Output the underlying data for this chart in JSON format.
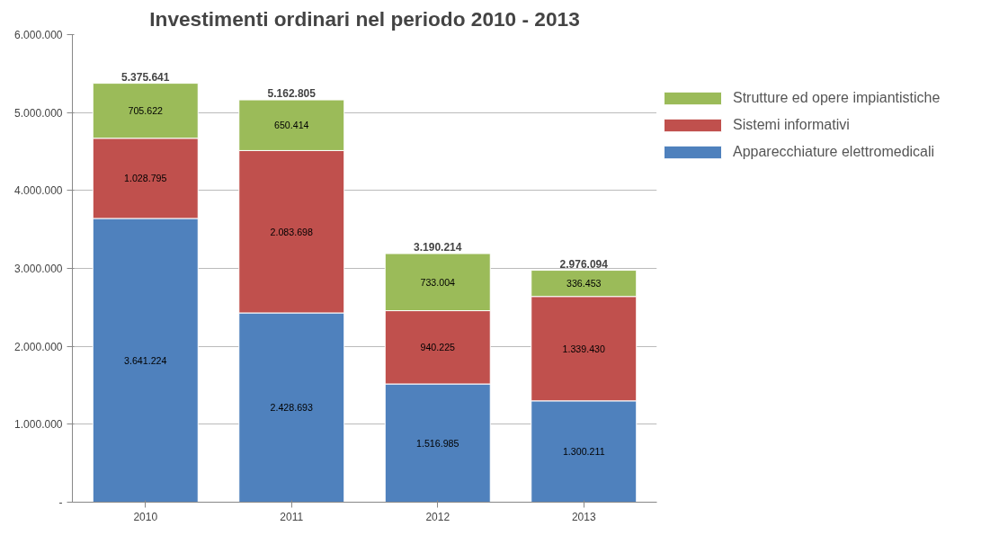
{
  "chart_data": {
    "type": "bar",
    "title": "Investimenti ordinari nel periodo 2010 - 2013",
    "categories": [
      "2010",
      "2011",
      "2012",
      "2013"
    ],
    "stacked": true,
    "series": [
      {
        "name": "Apparecchiature elettromedicali",
        "color": "#4f81bd",
        "values": [
          3641224,
          2428693,
          1516985,
          1300211
        ],
        "value_labels": [
          "3.641.224",
          "2.428.693",
          "1.516.985",
          "1.300.211"
        ]
      },
      {
        "name": "Sistemi informativi",
        "color": "#c0504d",
        "values": [
          1028795,
          2083698,
          940225,
          1339430
        ],
        "value_labels": [
          "1.028.795",
          "2.083.698",
          "940.225",
          "1.339.430"
        ]
      },
      {
        "name": "Strutture ed opere impiantistiche",
        "color": "#9bbb59",
        "values": [
          705622,
          650414,
          733004,
          336453
        ],
        "value_labels": [
          "705.622",
          "650.414",
          "733.004",
          "336.453"
        ]
      }
    ],
    "totals": [
      "5.375.641",
      "5.162.805",
      "3.190.214",
      "2.976.094"
    ],
    "ylim": [
      0,
      6000000
    ],
    "yticks": [
      {
        "value": 0,
        "label": "-"
      },
      {
        "value": 1000000,
        "label": "1.000.000"
      },
      {
        "value": 2000000,
        "label": "2.000.000"
      },
      {
        "value": 3000000,
        "label": "3.000.000"
      },
      {
        "value": 4000000,
        "label": "4.000.000"
      },
      {
        "value": 5000000,
        "label": "5.000.000"
      },
      {
        "value": 6000000,
        "label": "6.000.000"
      }
    ],
    "grid": "y",
    "legend": "right"
  }
}
